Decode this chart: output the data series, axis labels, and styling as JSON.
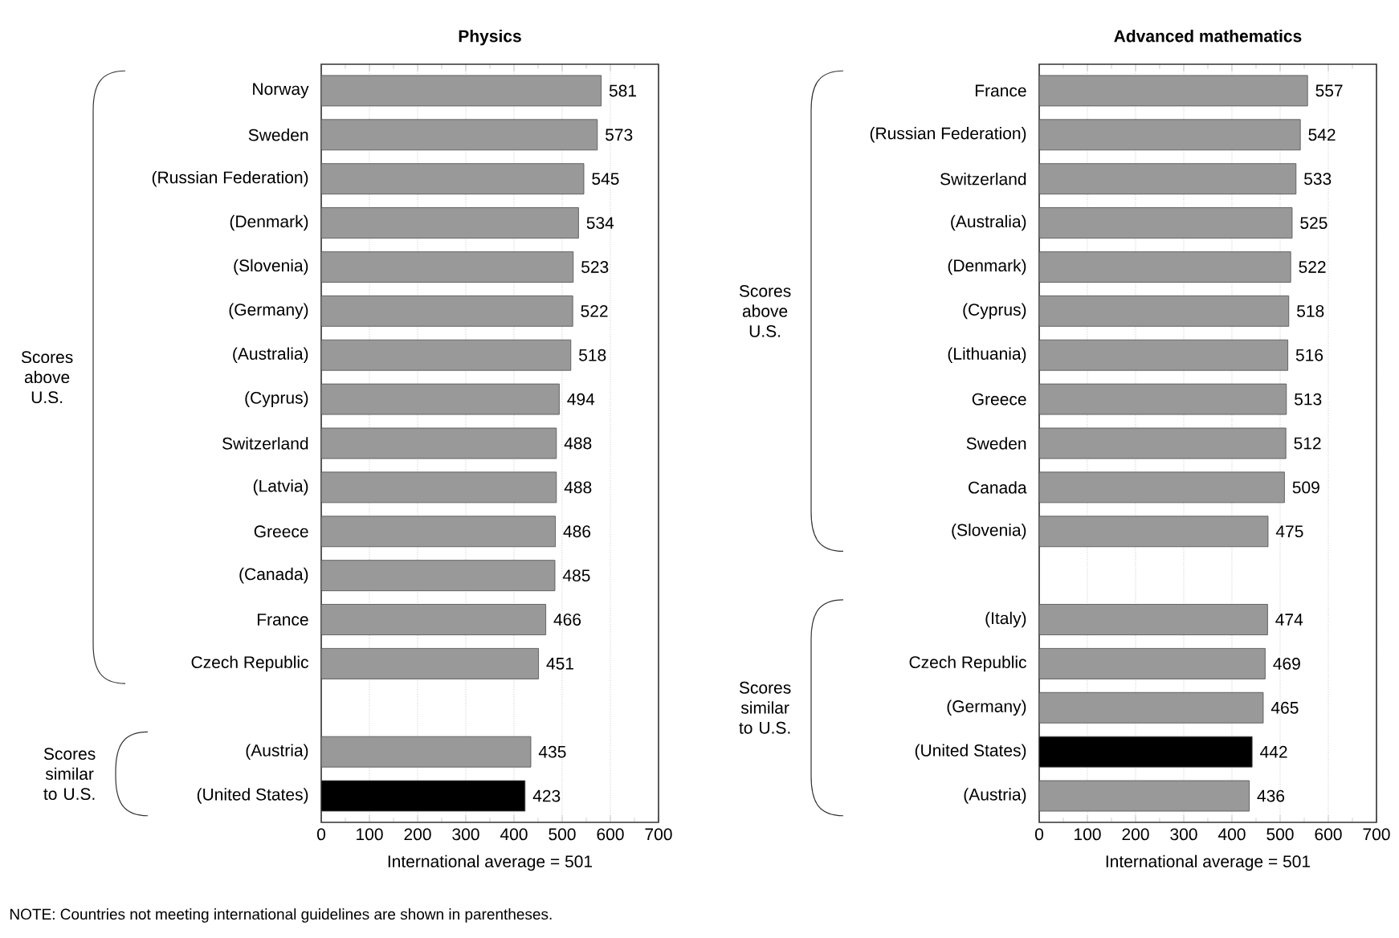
{
  "chart_data": [
    {
      "type": "bar",
      "orientation": "horizontal",
      "title": "Physics",
      "xlabel": "International average = 501",
      "categories": [
        "Norway",
        "Sweden",
        "(Russian Federation)",
        "(Denmark)",
        "(Slovenia)",
        "(Germany)",
        "(Australia)",
        "(Cyprus)",
        "Switzerland",
        "(Latvia)",
        "Greece",
        "(Canada)",
        "France",
        "Czech Republic",
        null,
        "(Austria)",
        "(United States)"
      ],
      "values": [
        581,
        573,
        545,
        534,
        523,
        522,
        518,
        494,
        488,
        488,
        486,
        485,
        466,
        451,
        null,
        435,
        423
      ],
      "colors": [
        "#999999",
        "#999999",
        "#999999",
        "#999999",
        "#999999",
        "#999999",
        "#999999",
        "#999999",
        "#999999",
        "#999999",
        "#999999",
        "#999999",
        "#999999",
        "#999999",
        "#999999",
        "#999999",
        "#000000"
      ],
      "xlim": [
        0,
        700
      ],
      "xticks": [
        0,
        100,
        200,
        300,
        400,
        500,
        600,
        700
      ],
      "grid": "x",
      "data_labels": true,
      "annotations": [
        "Scores above U.S.",
        "Scores similar to U.S.",
        "NOTE: Countries not meeting international guidelines are shown in parentheses."
      ]
    },
    {
      "type": "bar",
      "orientation": "horizontal",
      "title": "Advanced mathematics",
      "xlabel": "International average = 501",
      "categories": [
        "France",
        "(Russian Federation)",
        "Switzerland",
        "(Australia)",
        "(Denmark)",
        "(Cyprus)",
        "(Lithuania)",
        "Greece",
        "Sweden",
        "Canada",
        "(Slovenia)",
        null,
        "(Italy)",
        "Czech Republic",
        "(Germany)",
        "(United States)",
        "(Austria)"
      ],
      "values": [
        557,
        542,
        533,
        525,
        522,
        518,
        516,
        513,
        512,
        509,
        475,
        null,
        474,
        469,
        465,
        442,
        436
      ],
      "colors": [
        "#999999",
        "#999999",
        "#999999",
        "#999999",
        "#999999",
        "#999999",
        "#999999",
        "#999999",
        "#999999",
        "#999999",
        "#999999",
        "#999999",
        "#999999",
        "#999999",
        "#999999",
        "#000000",
        "#999999"
      ],
      "xlim": [
        0,
        700
      ],
      "xticks": [
        0,
        100,
        200,
        300,
        400,
        500,
        600,
        700
      ],
      "grid": "x",
      "data_labels": true,
      "annotations": [
        "Scores above U.S.",
        "Scores similar to U.S."
      ]
    }
  ]
}
